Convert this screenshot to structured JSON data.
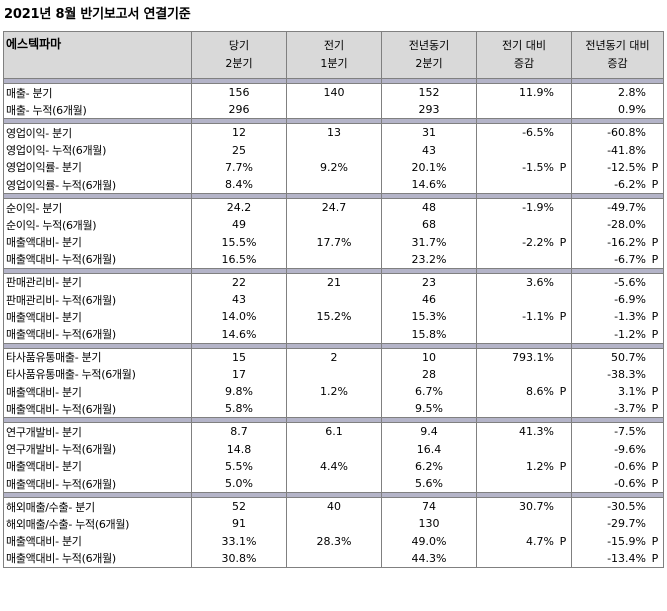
{
  "title": "2021년 8월 반기보고서 연결기준",
  "headers": {
    "company": "에스텍파마",
    "cur": [
      "당기",
      "2분기"
    ],
    "prev": [
      "전기",
      "1분기"
    ],
    "py": [
      "전년동기",
      "2분기"
    ],
    "vs_prev": [
      "전기 대비",
      "증감"
    ],
    "vs_py": [
      "전년동기 대비",
      "증감"
    ]
  },
  "sections": [
    {
      "rows": [
        {
          "label": "매출- 분기",
          "cur": "156",
          "prev": "140",
          "py": "152",
          "vs_prev": "11.9%",
          "vs_prev_p": "",
          "vs_py": "2.8%",
          "vs_py_p": ""
        },
        {
          "label": "매출- 누적(6개월)",
          "cur": "296",
          "prev": "",
          "py": "293",
          "vs_prev": "",
          "vs_prev_p": "",
          "vs_py": "0.9%",
          "vs_py_p": ""
        }
      ]
    },
    {
      "rows": [
        {
          "label": "영업이익- 분기",
          "cur": "12",
          "prev": "13",
          "py": "31",
          "vs_prev": "-6.5%",
          "vs_prev_p": "",
          "vs_py": "-60.8%",
          "vs_py_p": ""
        },
        {
          "label": "영업이익- 누적(6개월)",
          "cur": "25",
          "prev": "",
          "py": "43",
          "vs_prev": "",
          "vs_prev_p": "",
          "vs_py": "-41.8%",
          "vs_py_p": ""
        },
        {
          "label": "영업이익률- 분기",
          "cur": "7.7%",
          "prev": "9.2%",
          "py": "20.1%",
          "vs_prev": "-1.5%",
          "vs_prev_p": "P",
          "vs_py": "-12.5%",
          "vs_py_p": "P"
        },
        {
          "label": "영업이익률- 누적(6개월)",
          "cur": "8.4%",
          "prev": "",
          "py": "14.6%",
          "vs_prev": "",
          "vs_prev_p": "",
          "vs_py": "-6.2%",
          "vs_py_p": "P"
        }
      ]
    },
    {
      "rows": [
        {
          "label": "순이익- 분기",
          "cur": "24.2",
          "prev": "24.7",
          "py": "48",
          "vs_prev": "-1.9%",
          "vs_prev_p": "",
          "vs_py": "-49.7%",
          "vs_py_p": ""
        },
        {
          "label": "순이익- 누적(6개월)",
          "cur": "49",
          "prev": "",
          "py": "68",
          "vs_prev": "",
          "vs_prev_p": "",
          "vs_py": "-28.0%",
          "vs_py_p": ""
        },
        {
          "label": "매출액대비- 분기",
          "cur": "15.5%",
          "prev": "17.7%",
          "py": "31.7%",
          "vs_prev": "-2.2%",
          "vs_prev_p": "P",
          "vs_py": "-16.2%",
          "vs_py_p": "P"
        },
        {
          "label": "매출액대비- 누적(6개월)",
          "cur": "16.5%",
          "prev": "",
          "py": "23.2%",
          "vs_prev": "",
          "vs_prev_p": "",
          "vs_py": "-6.7%",
          "vs_py_p": "P"
        }
      ]
    },
    {
      "rows": [
        {
          "label": "판매관리비- 분기",
          "cur": "22",
          "prev": "21",
          "py": "23",
          "vs_prev": "3.6%",
          "vs_prev_p": "",
          "vs_py": "-5.6%",
          "vs_py_p": ""
        },
        {
          "label": "판매관리비- 누적(6개월)",
          "cur": "43",
          "prev": "",
          "py": "46",
          "vs_prev": "",
          "vs_prev_p": "",
          "vs_py": "-6.9%",
          "vs_py_p": ""
        },
        {
          "label": "매출액대비- 분기",
          "cur": "14.0%",
          "prev": "15.2%",
          "py": "15.3%",
          "vs_prev": "-1.1%",
          "vs_prev_p": "P",
          "vs_py": "-1.3%",
          "vs_py_p": "P"
        },
        {
          "label": "매출액대비- 누적(6개월)",
          "cur": "14.6%",
          "prev": "",
          "py": "15.8%",
          "vs_prev": "",
          "vs_prev_p": "",
          "vs_py": "-1.2%",
          "vs_py_p": "P"
        }
      ]
    },
    {
      "rows": [
        {
          "label": "타사품유통매출- 분기",
          "cur": "15",
          "prev": "2",
          "py": "10",
          "vs_prev": "793.1%",
          "vs_prev_p": "",
          "vs_py": "50.7%",
          "vs_py_p": ""
        },
        {
          "label": "타사품유통매출- 누적(6개월)",
          "cur": "17",
          "prev": "",
          "py": "28",
          "vs_prev": "",
          "vs_prev_p": "",
          "vs_py": "-38.3%",
          "vs_py_p": ""
        },
        {
          "label": "매출액대비- 분기",
          "cur": "9.8%",
          "prev": "1.2%",
          "py": "6.7%",
          "vs_prev": "8.6%",
          "vs_prev_p": "P",
          "vs_py": "3.1%",
          "vs_py_p": "P"
        },
        {
          "label": "매출액대비- 누적(6개월)",
          "cur": "5.8%",
          "prev": "",
          "py": "9.5%",
          "vs_prev": "",
          "vs_prev_p": "",
          "vs_py": "-3.7%",
          "vs_py_p": "P"
        }
      ]
    },
    {
      "rows": [
        {
          "label": "연구개발비- 분기",
          "cur": "8.7",
          "prev": "6.1",
          "py": "9.4",
          "vs_prev": "41.3%",
          "vs_prev_p": "",
          "vs_py": "-7.5%",
          "vs_py_p": ""
        },
        {
          "label": "연구개발비- 누적(6개월)",
          "cur": "14.8",
          "prev": "",
          "py": "16.4",
          "vs_prev": "",
          "vs_prev_p": "",
          "vs_py": "-9.6%",
          "vs_py_p": ""
        },
        {
          "label": "매출액대비- 분기",
          "cur": "5.5%",
          "prev": "4.4%",
          "py": "6.2%",
          "vs_prev": "1.2%",
          "vs_prev_p": "P",
          "vs_py": "-0.6%",
          "vs_py_p": "P"
        },
        {
          "label": "매출액대비- 누적(6개월)",
          "cur": "5.0%",
          "prev": "",
          "py": "5.6%",
          "vs_prev": "",
          "vs_prev_p": "",
          "vs_py": "-0.6%",
          "vs_py_p": "P"
        }
      ]
    },
    {
      "rows": [
        {
          "label": "해외매출/수출- 분기",
          "cur": "52",
          "prev": "40",
          "py": "74",
          "vs_prev": "30.7%",
          "vs_prev_p": "",
          "vs_py": "-30.5%",
          "vs_py_p": ""
        },
        {
          "label": "해외매출/수출- 누적(6개월)",
          "cur": "91",
          "prev": "",
          "py": "130",
          "vs_prev": "",
          "vs_prev_p": "",
          "vs_py": "-29.7%",
          "vs_py_p": ""
        },
        {
          "label": "매출액대비- 분기",
          "cur": "33.1%",
          "prev": "28.3%",
          "py": "49.0%",
          "vs_prev": "4.7%",
          "vs_prev_p": "P",
          "vs_py": "-15.9%",
          "vs_py_p": "P"
        },
        {
          "label": "매출액대비- 누적(6개월)",
          "cur": "30.8%",
          "prev": "",
          "py": "44.3%",
          "vs_prev": "",
          "vs_prev_p": "",
          "vs_py": "-13.4%",
          "vs_py_p": "P"
        }
      ]
    }
  ]
}
